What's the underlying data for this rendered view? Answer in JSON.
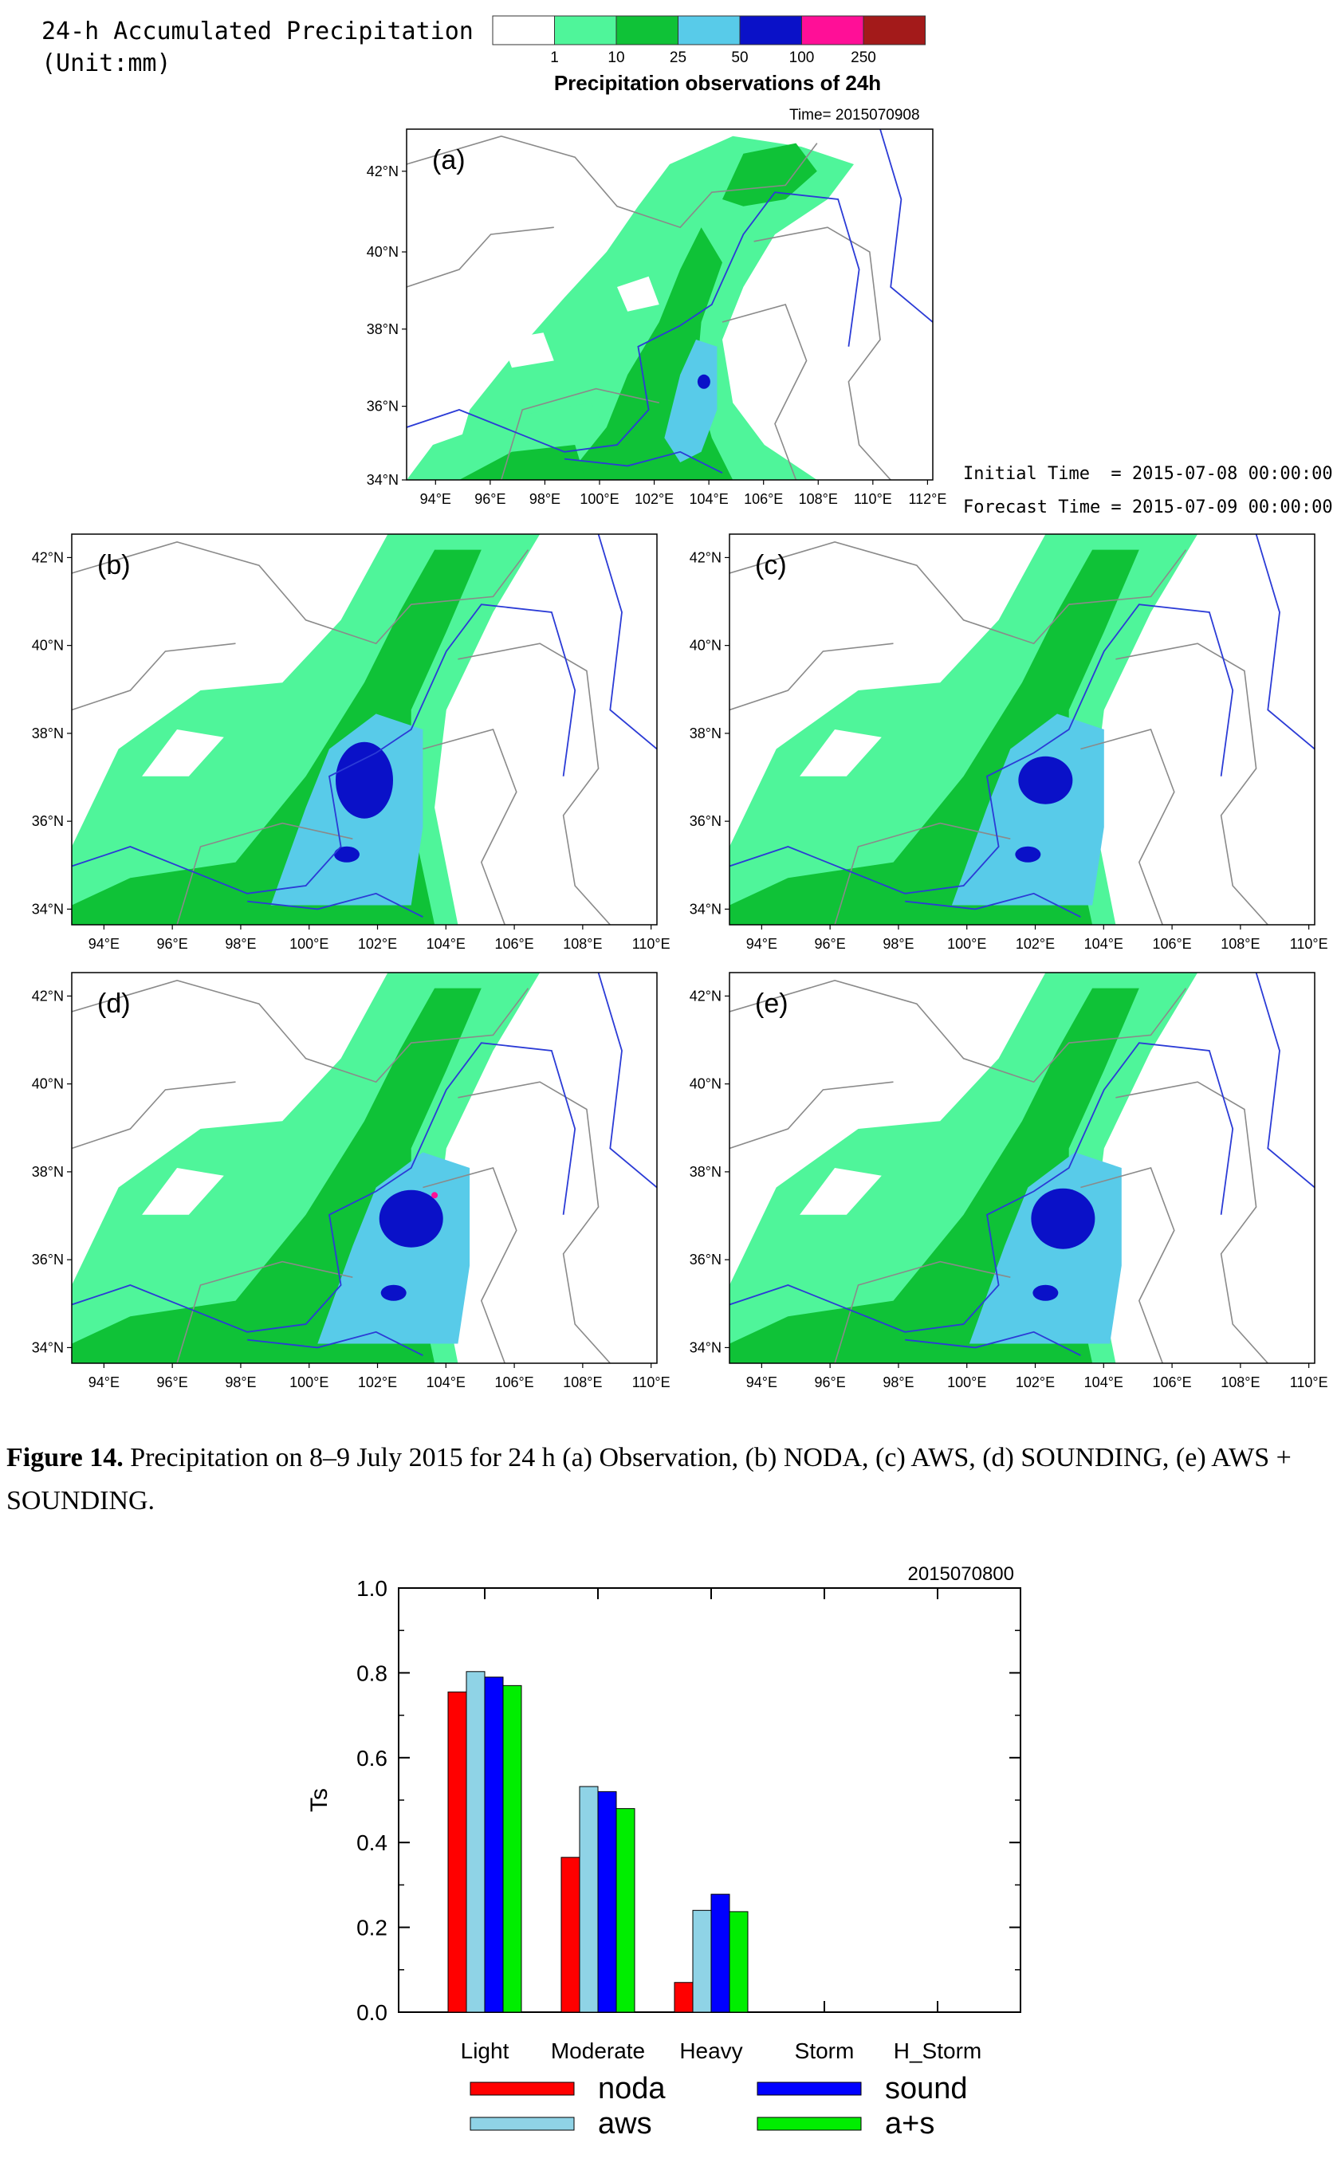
{
  "header": {
    "title_line1": "24-h Accumulated Precipitation",
    "title_line2": "(Unit:mm)",
    "colorbar_labels": [
      "1",
      "10",
      "25",
      "50",
      "100",
      "250"
    ],
    "colorbar_colors": [
      "#ffffff",
      "#4ff59a",
      "#0fc237",
      "#58cbe9",
      "#0a11c8",
      "#ff0f97",
      "#a31a1a"
    ],
    "colorbar_title": "Precipitation observations of 24h",
    "time_label": "Time= 2015070908",
    "initial_time": "Initial Time  = 2015-07-08 00:00:00",
    "forecast_time": "Forecast Time = 2015-07-09 00:00:00"
  },
  "maps": {
    "lat_labels": [
      "42°N",
      "40°N",
      "38°N",
      "36°N",
      "34°N"
    ],
    "lon_labels_a": [
      "94°E",
      "96°E",
      "98°E",
      "100°E",
      "102°E",
      "104°E",
      "106°E",
      "108°E",
      "110°E",
      "112°E"
    ],
    "lon_labels_bcde": [
      "94°E",
      "96°E",
      "98°E",
      "100°E",
      "102°E",
      "104°E",
      "106°E",
      "108°E",
      "110°E"
    ],
    "panels": [
      {
        "letter": "(a)"
      },
      {
        "letter": "(b)"
      },
      {
        "letter": "(c)"
      },
      {
        "letter": "(d)"
      },
      {
        "letter": "(e)"
      }
    ]
  },
  "caption": {
    "label": "Figure 14.",
    "text": "Precipitation on 8–9 July 2015 for 24 h (a) Observation, (b) NODA, (c) AWS, (d) SOUNDING, (e) AWS + SOUNDING."
  },
  "chart_data": {
    "type": "bar",
    "title": "2015070800",
    "ylabel": "Ts",
    "xlabel": "",
    "ylim": [
      0,
      1.0
    ],
    "yticks": [
      "0.0",
      "0.2",
      "0.4",
      "0.6",
      "0.8",
      "1.0"
    ],
    "categories": [
      "Light",
      "Moderate",
      "Heavy",
      "Storm",
      "H_Storm"
    ],
    "series": [
      {
        "name": "noda",
        "color": "#ff0000",
        "values": [
          0.755,
          0.365,
          0.07,
          0,
          0
        ]
      },
      {
        "name": "aws",
        "color": "#8fd3e6",
        "values": [
          0.803,
          0.532,
          0.24,
          0,
          0
        ]
      },
      {
        "name": "sound",
        "color": "#0000ff",
        "values": [
          0.79,
          0.52,
          0.278,
          0,
          0
        ]
      },
      {
        "name": "a+s",
        "color": "#00ee00",
        "values": [
          0.77,
          0.48,
          0.237,
          0,
          0
        ]
      }
    ],
    "legend": "bottom"
  }
}
